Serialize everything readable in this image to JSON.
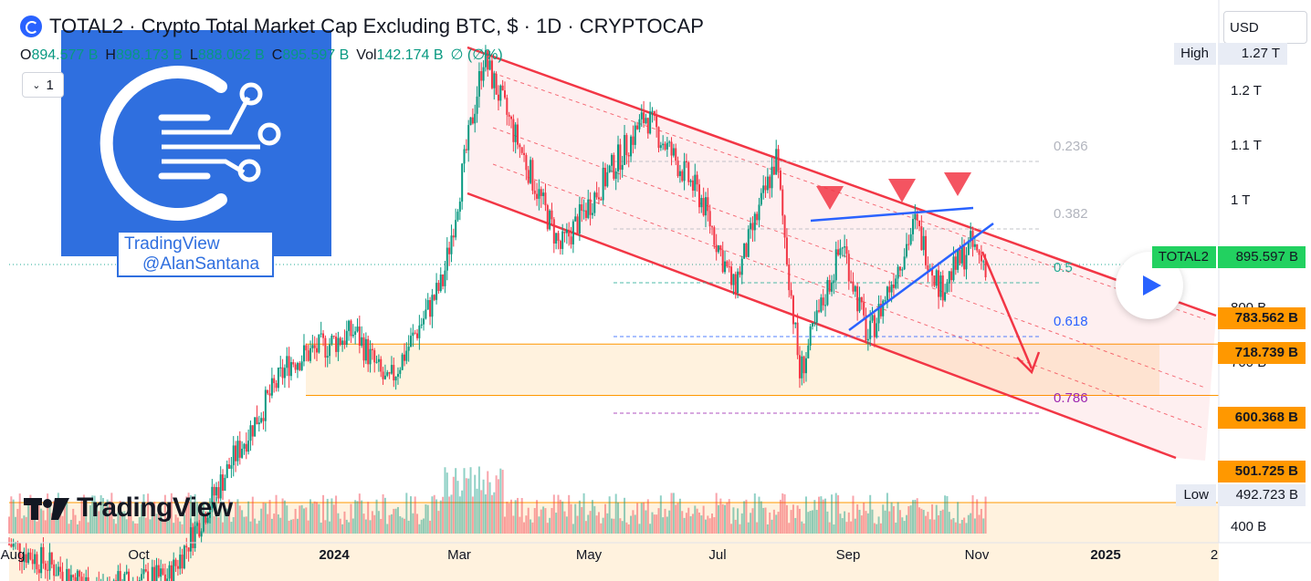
{
  "header": {
    "title": "TOTAL2 · Crypto Total Market Cap Excluding BTC, $ · 1D · CRYPTOCAP",
    "ohlc": [
      {
        "k": "O",
        "v": "894.577 B"
      },
      {
        "k": "H",
        "v": "898.173 B"
      },
      {
        "k": "L",
        "v": "888.062 B"
      },
      {
        "k": "C",
        "v": "895.597 B"
      },
      {
        "k": "Vol",
        "v": "142.174 B"
      }
    ],
    "change": "∅ (∅%)",
    "interval_count": "1",
    "currency": "USD"
  },
  "watermark": {
    "line1": "TradingView",
    "line2": "@AlanSantana",
    "brand": "TradingView"
  },
  "price_axis": {
    "labels": [
      "1.27 T",
      "1.2 T",
      "1.1 T",
      "1 T",
      "800 B",
      "700 B",
      "400 B"
    ],
    "high_label": "High",
    "high_value": "1.27 T",
    "low_label": "Low",
    "low_value": "492.723 B",
    "current_symbol": "TOTAL2",
    "current_value": "895.597 B",
    "levels": [
      "783.562 B",
      "718.739 B",
      "600.368 B",
      "501.725 B"
    ]
  },
  "time_axis": [
    "Aug",
    "Oct",
    "2024",
    "Mar",
    "May",
    "Jul",
    "Sep",
    "Nov",
    "2025",
    "2"
  ],
  "fib_labels": [
    "0.236",
    "0.382",
    "0.5",
    "0.618",
    "0.786"
  ],
  "colors": {
    "up": "#089981",
    "down": "#f23645",
    "channel": "#f23645",
    "wedge": "#2962ff",
    "support": "#ff9800",
    "current": "#22ab94"
  },
  "chart_data": {
    "type": "candlestick",
    "title": "TOTAL2 · Crypto Total Market Cap Excluding BTC, $ · 1D · CRYPTOCAP",
    "y_scale": "log",
    "ylim_billions": [
      380,
      1300
    ],
    "x_range": [
      "2023-08-01",
      "2025-02-15"
    ],
    "keypoints_billions": [
      {
        "date": "2023-08-01",
        "close": 560
      },
      {
        "date": "2023-09-10",
        "close": 520
      },
      {
        "date": "2023-10-15",
        "close": 530
      },
      {
        "date": "2023-11-15",
        "close": 650
      },
      {
        "date": "2023-12-10",
        "close": 760
      },
      {
        "date": "2024-01-10",
        "close": 800
      },
      {
        "date": "2024-01-25",
        "close": 730
      },
      {
        "date": "2024-02-20",
        "close": 870
      },
      {
        "date": "2024-03-10",
        "close": 1270
      },
      {
        "date": "2024-04-15",
        "close": 920
      },
      {
        "date": "2024-05-25",
        "close": 1150
      },
      {
        "date": "2024-06-20",
        "close": 1000
      },
      {
        "date": "2024-07-05",
        "close": 860
      },
      {
        "date": "2024-07-25",
        "close": 1070
      },
      {
        "date": "2024-08-05",
        "close": 745
      },
      {
        "date": "2024-08-25",
        "close": 930
      },
      {
        "date": "2024-09-06",
        "close": 790
      },
      {
        "date": "2024-09-28",
        "close": 960
      },
      {
        "date": "2024-10-10",
        "close": 860
      },
      {
        "date": "2024-10-24",
        "close": 925
      },
      {
        "date": "2024-10-31",
        "close": 896
      }
    ],
    "horizontal_levels_billions": [
      783.562,
      718.739,
      600.368,
      501.725
    ],
    "fib_levels": [
      0.236,
      0.382,
      0.5,
      0.618,
      0.786
    ],
    "last_close_billions": 895.597,
    "high_billions": 1270,
    "low_billions": 492.723
  }
}
